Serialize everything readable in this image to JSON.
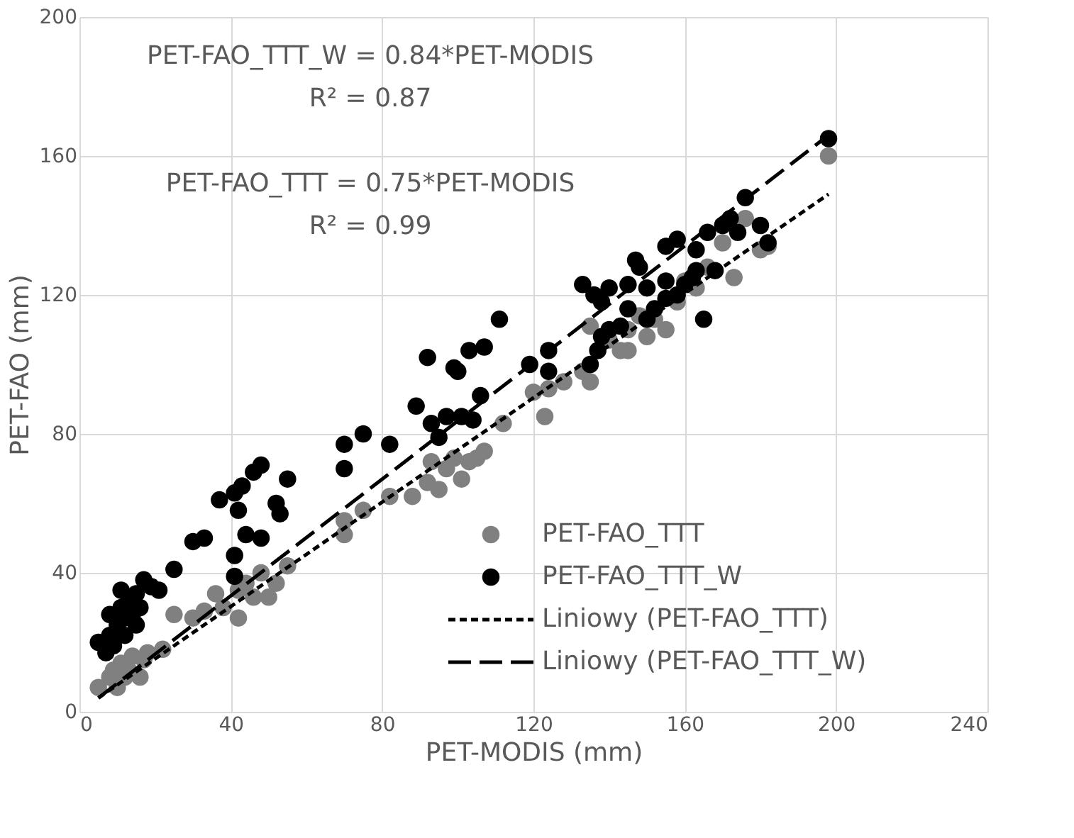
{
  "chart_data": {
    "type": "scatter",
    "xlabel": "PET-MODIS (mm)",
    "ylabel": "PET-FAO (mm)",
    "xlim": [
      0,
      240
    ],
    "xticks": [
      0,
      40,
      80,
      120,
      160,
      200,
      240
    ],
    "ylim": [
      0,
      200
    ],
    "yticks": [
      0,
      40,
      80,
      120,
      160,
      200
    ],
    "grid": true,
    "legend": "bottom right",
    "annotations": [
      "PET-FAO_TTT_W  = 0.84*PET-MODIS",
      "R² = 0.87",
      "PET-FAO_TTT  = 0.75*PET-MODIS",
      "R² = 0.99"
    ],
    "series": [
      {
        "name": "PET-FAO_TTT",
        "marker": "circle",
        "color": "#808080",
        "x": [
          5,
          8,
          9,
          10,
          11,
          12,
          13,
          14,
          16,
          17,
          18,
          22,
          25,
          30,
          33,
          36,
          38,
          42,
          42,
          44,
          46,
          48,
          50,
          52,
          55,
          70,
          70,
          75,
          82,
          88,
          92,
          93,
          95,
          97,
          99,
          101,
          103,
          105,
          107,
          112,
          120,
          123,
          124,
          128,
          133,
          135,
          140,
          143,
          145,
          148,
          150,
          152,
          155,
          158,
          160,
          163,
          166,
          170,
          173,
          176,
          180,
          182,
          198,
          135,
          145
        ],
        "values": [
          7,
          10,
          12,
          7,
          14,
          10,
          12,
          16,
          10,
          15,
          17,
          18,
          28,
          27,
          29,
          34,
          30,
          27,
          35,
          37,
          33,
          40,
          33,
          37,
          42,
          51,
          55,
          58,
          62,
          62,
          66,
          72,
          64,
          70,
          73,
          67,
          72,
          73,
          75,
          83,
          92,
          85,
          93,
          95,
          98,
          95,
          107,
          104,
          110,
          114,
          108,
          113,
          110,
          118,
          124,
          122,
          128,
          135,
          125,
          142,
          133,
          134,
          160,
          111,
          104
        ]
      },
      {
        "name": "PET-FAO_TTT_W",
        "marker": "circle",
        "color": "#000000",
        "x": [
          5,
          7,
          8,
          8,
          9,
          10,
          11,
          11,
          12,
          12,
          13,
          14,
          15,
          15,
          16,
          17,
          19,
          21,
          25,
          30,
          33,
          37,
          41,
          43,
          41,
          42,
          44,
          46,
          48,
          48,
          52,
          53,
          55,
          41,
          70,
          70,
          75,
          82,
          89,
          92,
          93,
          95,
          97,
          99,
          100,
          101,
          103,
          104,
          106,
          107,
          111,
          119,
          124,
          124,
          133,
          136,
          138,
          140,
          143,
          145,
          147,
          148,
          150,
          150,
          152,
          155,
          155,
          158,
          160,
          163,
          163,
          165,
          166,
          168,
          170,
          172,
          174,
          176,
          180,
          182,
          198,
          135,
          137,
          138,
          140,
          145,
          155,
          158,
          162
        ],
        "values": [
          20,
          17,
          22,
          28,
          19,
          25,
          30,
          35,
          22,
          27,
          32,
          28,
          34,
          25,
          30,
          38,
          36,
          35,
          41,
          49,
          50,
          61,
          63,
          65,
          45,
          58,
          51,
          69,
          71,
          50,
          60,
          57,
          67,
          39,
          77,
          70,
          80,
          77,
          88,
          102,
          83,
          79,
          85,
          99,
          98,
          85,
          104,
          84,
          91,
          105,
          113,
          100,
          104,
          98,
          123,
          120,
          118,
          122,
          111,
          123,
          130,
          128,
          122,
          113,
          116,
          124,
          134,
          136,
          123,
          127,
          133,
          113,
          138,
          127,
          140,
          142,
          138,
          148,
          140,
          135,
          165,
          100,
          104,
          108,
          110,
          116,
          119,
          120,
          125
        ]
      },
      {
        "name": "Liniowy (PET-FAO_TTT)",
        "type": "line",
        "line_style": "dotted",
        "marker": "none",
        "color": "#000000",
        "x": [
          5,
          198
        ],
        "values": [
          4,
          149
        ]
      },
      {
        "name": "Liniowy (PET-FAO_TTT_W)",
        "type": "line",
        "line_style": "dashed",
        "marker": "none",
        "color": "#000000",
        "x": [
          5,
          198
        ],
        "values": [
          4,
          166
        ]
      }
    ]
  }
}
